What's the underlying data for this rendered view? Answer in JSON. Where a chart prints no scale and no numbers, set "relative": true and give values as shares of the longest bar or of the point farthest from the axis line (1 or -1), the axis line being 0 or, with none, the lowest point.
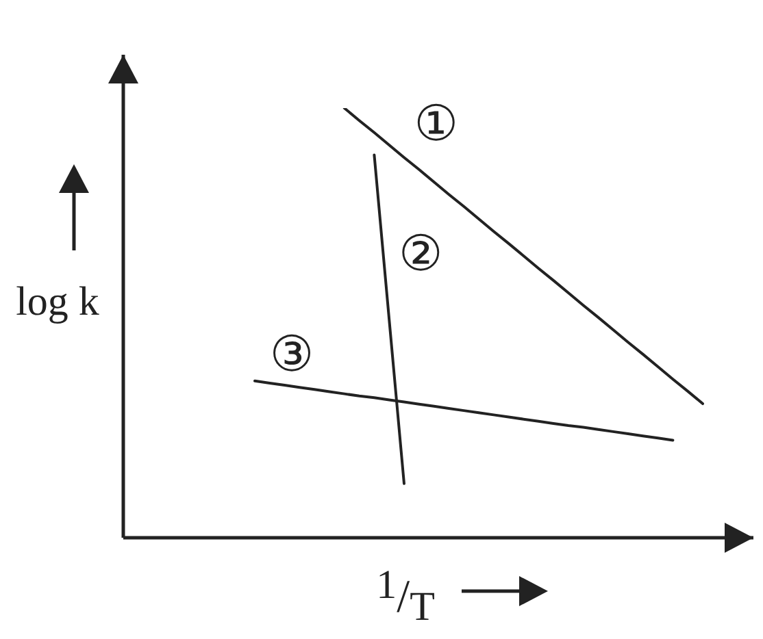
{
  "chart_data": {
    "type": "line",
    "xlabel": "$^{1}$/$_{T}$",
    "ylabel": "log k",
    "relative": true,
    "line_style": "solid",
    "categories": [
      null,
      null,
      null,
      null,
      null,
      null,
      null,
      null,
      null,
      null,
      null,
      null,
      null,
      null,
      null,
      null,
      null,
      null,
      null,
      null,
      null,
      null,
      null,
      null,
      null,
      null,
      null,
      null,
      null,
      null,
      null
    ],
    "series": [
      {
        "name": "①",
        "color": "#222222",
        "values": [
          null,
          null,
          null,
          null,
          null,
          null,
          1.0,
          0.971,
          0.943,
          0.914,
          0.885,
          0.857,
          0.828,
          0.799,
          0.771,
          0.742,
          0.713,
          0.685,
          0.656,
          0.627,
          0.599,
          0.57,
          0.541,
          0.513,
          0.484,
          0.455,
          0.427,
          0.398,
          0.369,
          0.341,
          0.312
        ]
      },
      {
        "name": "②",
        "color": "#222222",
        "values": [
          null,
          null,
          null,
          null,
          null,
          null,
          null,
          null,
          0.891,
          0.508,
          0.126,
          null,
          null,
          null,
          null,
          null,
          null,
          null,
          null,
          null,
          null,
          null,
          null,
          null,
          null,
          null,
          null,
          null,
          null,
          null,
          null
        ]
      },
      {
        "name": "③",
        "color": "#222222",
        "values": [
          0.365,
          0.36,
          0.355,
          0.35,
          0.345,
          0.34,
          0.335,
          0.33,
          0.326,
          0.321,
          0.316,
          0.311,
          0.306,
          0.301,
          0.296,
          0.291,
          0.286,
          0.281,
          0.276,
          0.271,
          0.266,
          0.261,
          0.257,
          0.252,
          0.247,
          0.242,
          0.237,
          0.232,
          0.227,
          null,
          null
        ]
      }
    ]
  }
}
